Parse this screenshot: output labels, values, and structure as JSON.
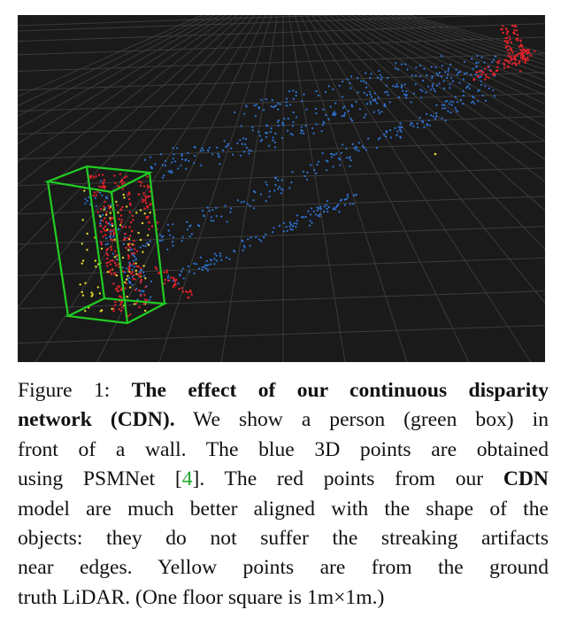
{
  "figure": {
    "point_colors": {
      "background": "#1a1a1a",
      "grid": "#3c3c3c",
      "box": "#22cc22",
      "psmnet_points": "#2f74d6",
      "cdn_points": "#e3232b",
      "lidar_points": "#e6dc2a"
    }
  },
  "caption": {
    "line1_prefix": "Figure 1: ",
    "line1_bold": "The effect of our continuous disparity",
    "line2_bold": "network (CDN).",
    "line2_rest": " We show a person (green box) in",
    "line3": "front of a wall. The blue 3D points are obtained",
    "line4_a": "using PSMNet [",
    "line4_ref": "4",
    "line4_b": "]. The red points from our ",
    "line4_bold": "CDN",
    "line5": "model are much better aligned with the shape of the",
    "line6": "objects: they do not suffer the streaking artifacts",
    "line7": "near edges.  Yellow points are from the ground",
    "line8": "truth LiDAR. (One floor square is 1m×1m.)"
  }
}
